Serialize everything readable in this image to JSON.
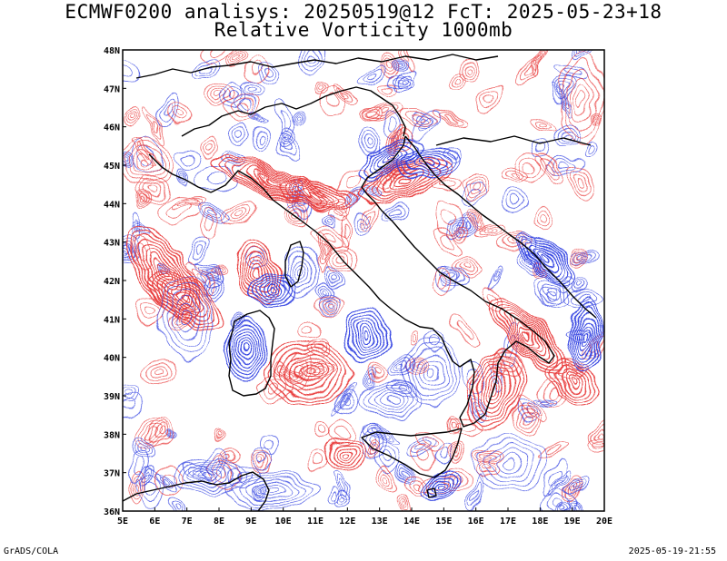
{
  "title": {
    "line1": "ECMWF0200 analisys: 20250519@12 FcT: 2025-05-23+18",
    "line2": "Relative Vorticity 1000mb"
  },
  "footer": {
    "left": "GrADS/COLA",
    "right": "2025-05-19-21:55"
  },
  "map": {
    "lon_ticks": [
      "5E",
      "6E",
      "7E",
      "8E",
      "9E",
      "10E",
      "11E",
      "12E",
      "13E",
      "14E",
      "15E",
      "16E",
      "17E",
      "18E",
      "19E",
      "20E"
    ],
    "lat_ticks": [
      "48N",
      "47N",
      "46N",
      "45N",
      "44N",
      "43N",
      "42N",
      "41N",
      "40N",
      "39N",
      "38N",
      "37N",
      "36N"
    ],
    "lon_range": [
      5,
      20
    ],
    "lat_range": [
      36,
      48
    ],
    "colors": {
      "positive_contours": "#e83838",
      "negative_contours": "#2c3ce0",
      "coastline": "#000000",
      "frame": "#000000"
    }
  }
}
